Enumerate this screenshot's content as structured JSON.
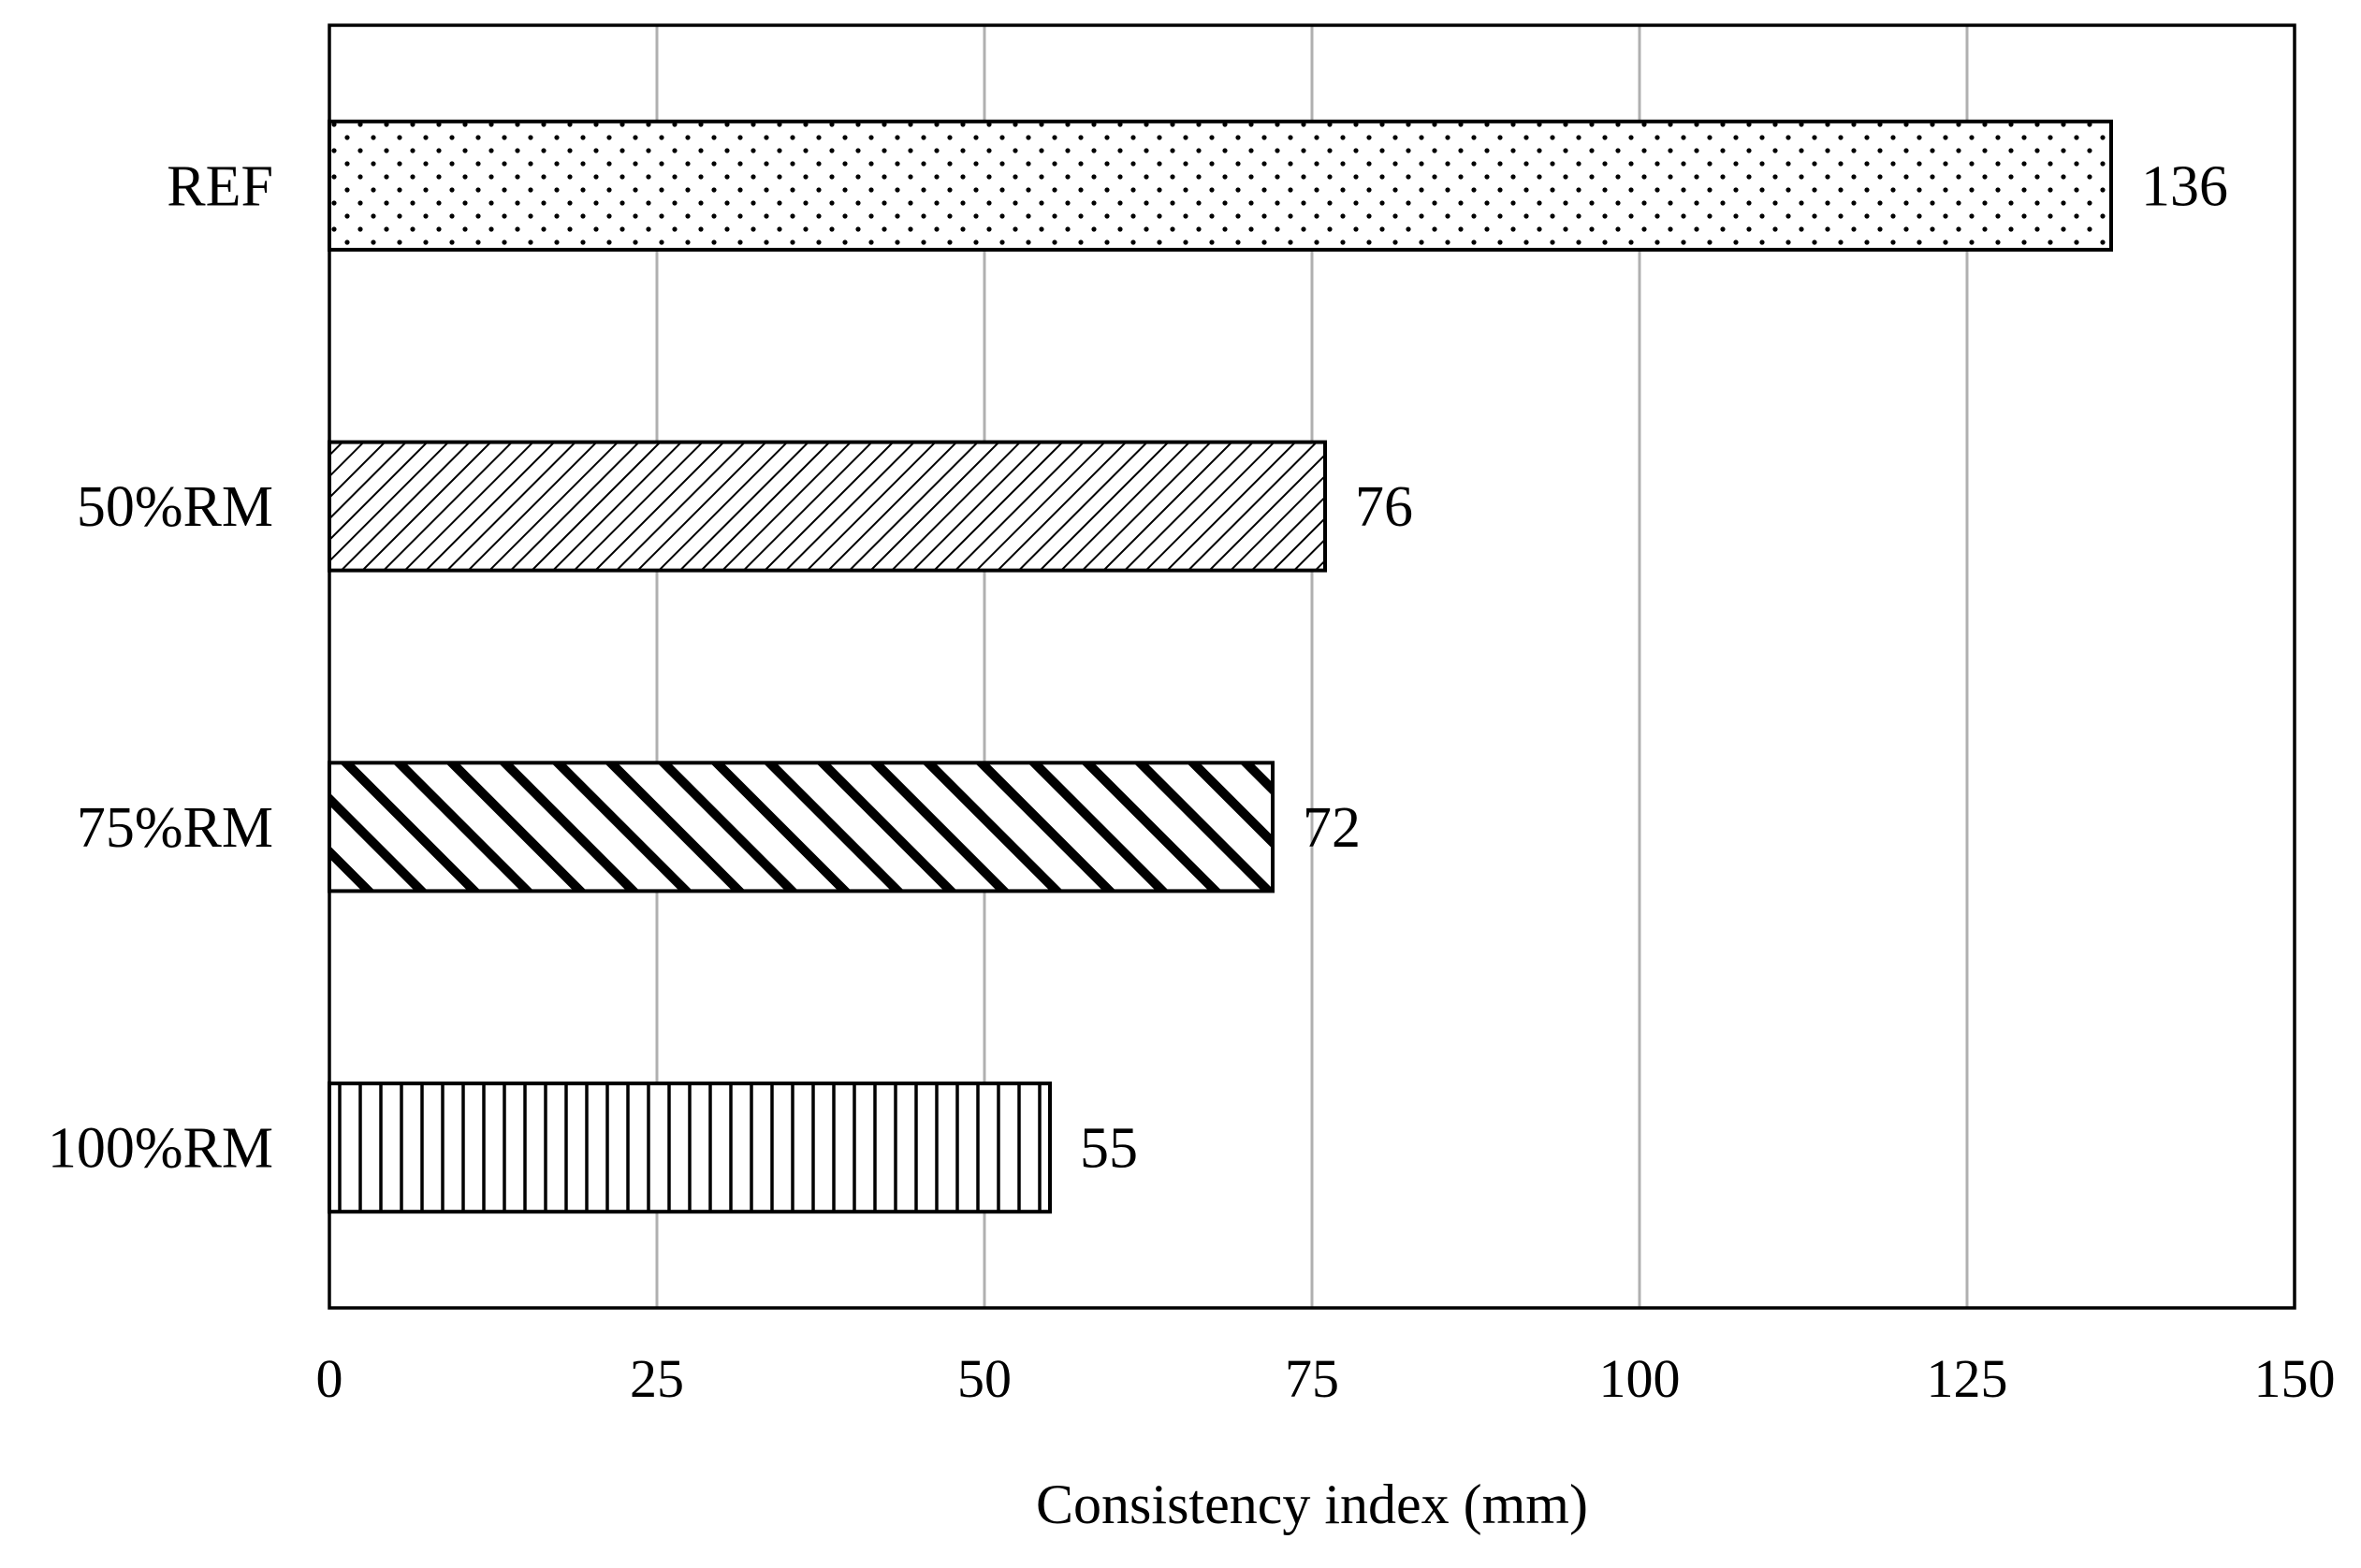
{
  "chart_data": {
    "type": "bar",
    "orientation": "horizontal",
    "categories": [
      "REF",
      "50%RM",
      "75%RM",
      "100%RM"
    ],
    "values": [
      136,
      76,
      72,
      55
    ],
    "value_labels": [
      "136",
      "76",
      "72",
      "55"
    ],
    "patterns": [
      "dots",
      "fine-diagonal-up",
      "bold-diagonal-down",
      "vertical-lines"
    ],
    "xlabel": "Consistency index (mm)",
    "ylabel": "",
    "xlim": [
      0,
      150
    ],
    "xticks": [
      0,
      25,
      50,
      75,
      100,
      125,
      150
    ],
    "grid": "vertical",
    "colors": {
      "bar_stroke": "#000000",
      "bar_fill": "#ffffff",
      "grid": "#b0b0b0"
    }
  }
}
